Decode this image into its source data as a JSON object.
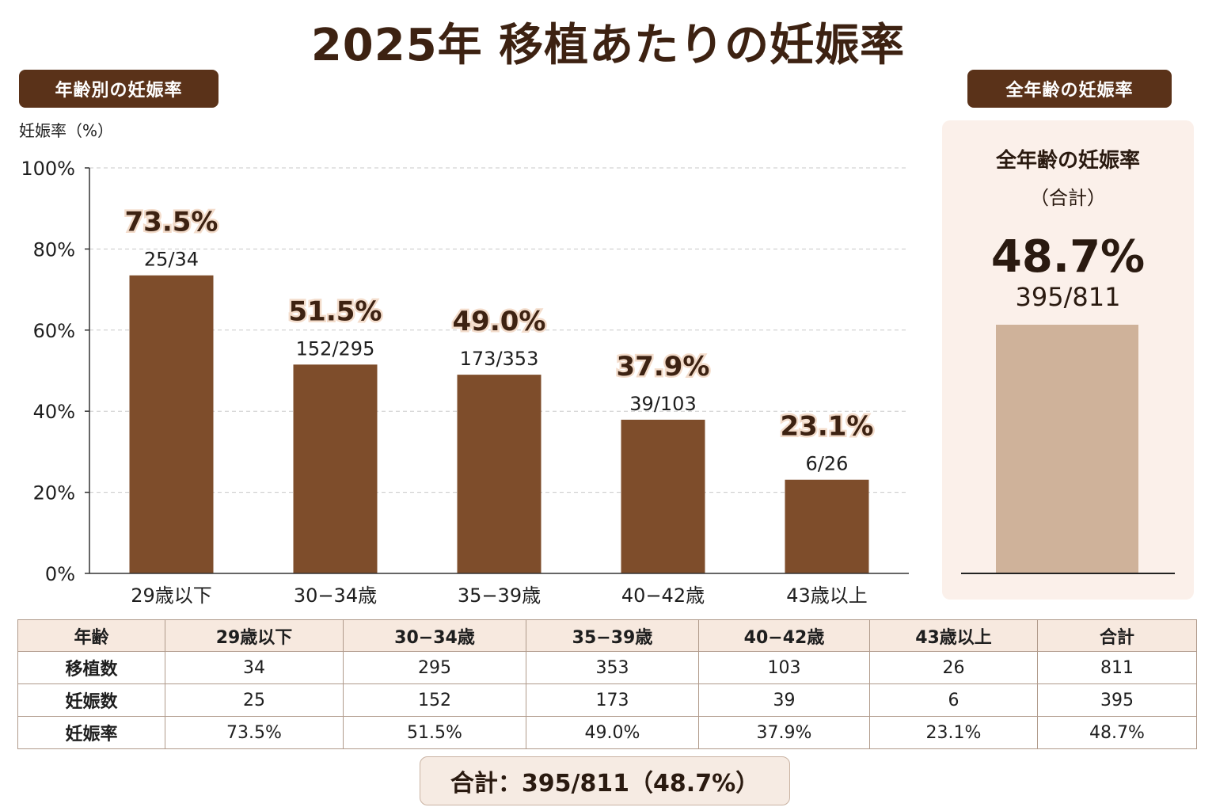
{
  "title": "2025年 移植あたりの妊娠率",
  "left_pill": "年齢別の妊娠率",
  "right_pill": "全年齢の妊娠率",
  "chart_data": {
    "type": "bar",
    "ylabel": "妊娠率（%）",
    "ylim": [
      0,
      100
    ],
    "yticks": [
      "0%",
      "20%",
      "40%",
      "60%",
      "80%",
      "100%"
    ],
    "grid": true,
    "categories": [
      "29歳以下",
      "30−34歳",
      "35−39歳",
      "40−42歳",
      "43歳以上"
    ],
    "values": [
      73.5,
      51.5,
      49.0,
      37.9,
      23.1
    ],
    "value_labels": [
      "73.5%",
      "51.5%",
      "49.0%",
      "37.9%",
      "23.1%"
    ],
    "fraction_labels": [
      "25/34",
      "152/295",
      "173/353",
      "39/103",
      "6/26"
    ],
    "bar_color": "#7e4d2b"
  },
  "total_panel": {
    "title": "全年齢の妊娠率",
    "subtitle": "（合計）",
    "percent": "48.7%",
    "fraction": "395/811",
    "bar_color": "#cfb29a"
  },
  "table": {
    "headers": [
      "年齢",
      "29歳以下",
      "30−34歳",
      "35−39歳",
      "40−42歳",
      "43歳以上",
      "合計"
    ],
    "rows": [
      [
        "移植数",
        "34",
        "295",
        "353",
        "103",
        "26",
        "811"
      ],
      [
        "妊娠数",
        "25",
        "152",
        "173",
        "39",
        "6",
        "395"
      ],
      [
        "妊娠率",
        "73.5%",
        "51.5%",
        "49.0%",
        "37.9%",
        "23.1%",
        "48.7%"
      ]
    ]
  },
  "summary": "合計：395/811（48.7%）"
}
